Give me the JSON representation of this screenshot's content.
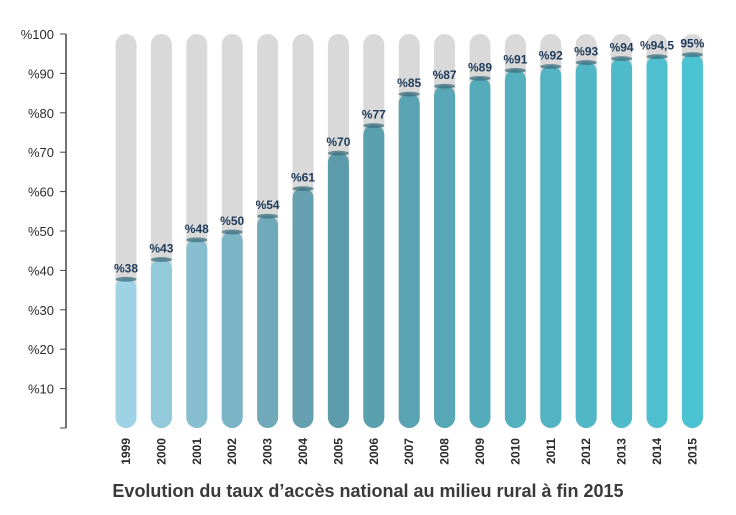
{
  "chart_data": {
    "type": "bar",
    "title": "Evolution du taux d’accès national au milieu rural à fin 2015",
    "categories": [
      "1999",
      "2000",
      "2001",
      "2002",
      "2003",
      "2004",
      "2005",
      "2006",
      "2007",
      "2008",
      "2009",
      "2010",
      "2011",
      "2012",
      "2013",
      "2014",
      "2015"
    ],
    "values": [
      38,
      43,
      48,
      50,
      54,
      61,
      70,
      77,
      85,
      87,
      89,
      91,
      92,
      93,
      94,
      94.5,
      95
    ],
    "data_labels": [
      "%38",
      "%43",
      "%48",
      "%50",
      "%54",
      "%61",
      "%70",
      "%77",
      "%85",
      "%87",
      "%89",
      "%91",
      "%92",
      "%93",
      "%94",
      "%94,5",
      "95%"
    ],
    "yticks": [
      {
        "value": 10,
        "label": "%10"
      },
      {
        "value": 20,
        "label": "%20"
      },
      {
        "value": 30,
        "label": "%30"
      },
      {
        "value": 40,
        "label": "%40"
      },
      {
        "value": 50,
        "label": "%50"
      },
      {
        "value": 60,
        "label": "%60"
      },
      {
        "value": 70,
        "label": "%70"
      },
      {
        "value": 80,
        "label": "%80"
      },
      {
        "value": 90,
        "label": "%90"
      },
      {
        "value": 100,
        "label": "%100"
      }
    ],
    "ylim": [
      0,
      100
    ],
    "grid": false,
    "colors": {
      "track": "#d8d9d8",
      "bar_start": "#9ed3e6",
      "bar_mid": "#5d9aa8",
      "bar_end": "#4cc3d2",
      "label": "#1f3a5a"
    }
  }
}
